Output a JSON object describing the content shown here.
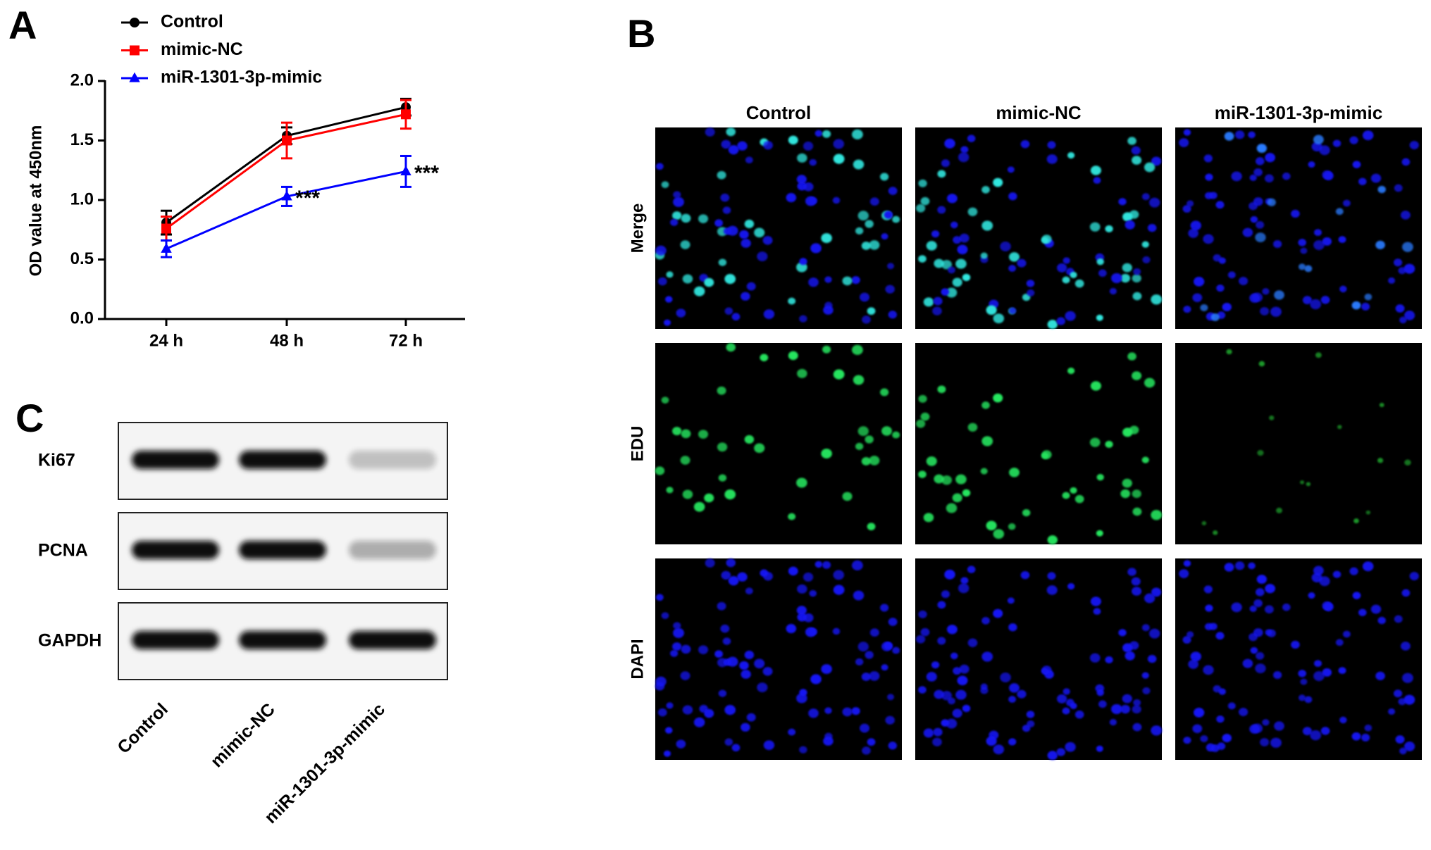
{
  "panel_labels": [
    "A",
    "B",
    "C"
  ],
  "chart_data": {
    "type": "line",
    "y_label": "OD value at 450nm",
    "categories": [
      "24 h",
      "48 h",
      "72 h"
    ],
    "series": [
      {
        "name": "Control",
        "color": "#000000",
        "marker": "circle",
        "values": [
          0.81,
          1.54,
          1.78
        ],
        "errors": [
          0.1,
          0.07,
          0.07
        ]
      },
      {
        "name": "mimic-NC",
        "color": "#ff0000",
        "marker": "square",
        "values": [
          0.76,
          1.5,
          1.72
        ],
        "errors": [
          0.1,
          0.15,
          0.12
        ]
      },
      {
        "name": "miR-1301-3p-mimic",
        "color": "#0000ff",
        "marker": "triangle",
        "values": [
          0.59,
          1.03,
          1.24
        ],
        "errors": [
          0.07,
          0.08,
          0.13
        ]
      }
    ],
    "annotations": [
      "***",
      "***"
    ],
    "ylim": [
      0,
      2
    ],
    "yticks": [
      {
        "value": 0,
        "label": "0.0"
      },
      {
        "value": 0.5,
        "label": "0.5"
      },
      {
        "value": 1,
        "label": "1.0"
      },
      {
        "value": 1.5,
        "label": "1.5"
      },
      {
        "value": 2,
        "label": "2.0"
      }
    ]
  },
  "microscopy": {
    "columns": [
      "Control",
      "mimic-NC",
      "miR-1301-3p-mimic"
    ],
    "rows": [
      "Merge",
      "EDU",
      "DAPI"
    ]
  },
  "western_blot": {
    "proteins": [
      "Ki67",
      "PCNA",
      "GAPDH"
    ],
    "lanes": [
      "Control",
      "mimic-NC",
      "miR-1301-3p-mimic"
    ]
  }
}
